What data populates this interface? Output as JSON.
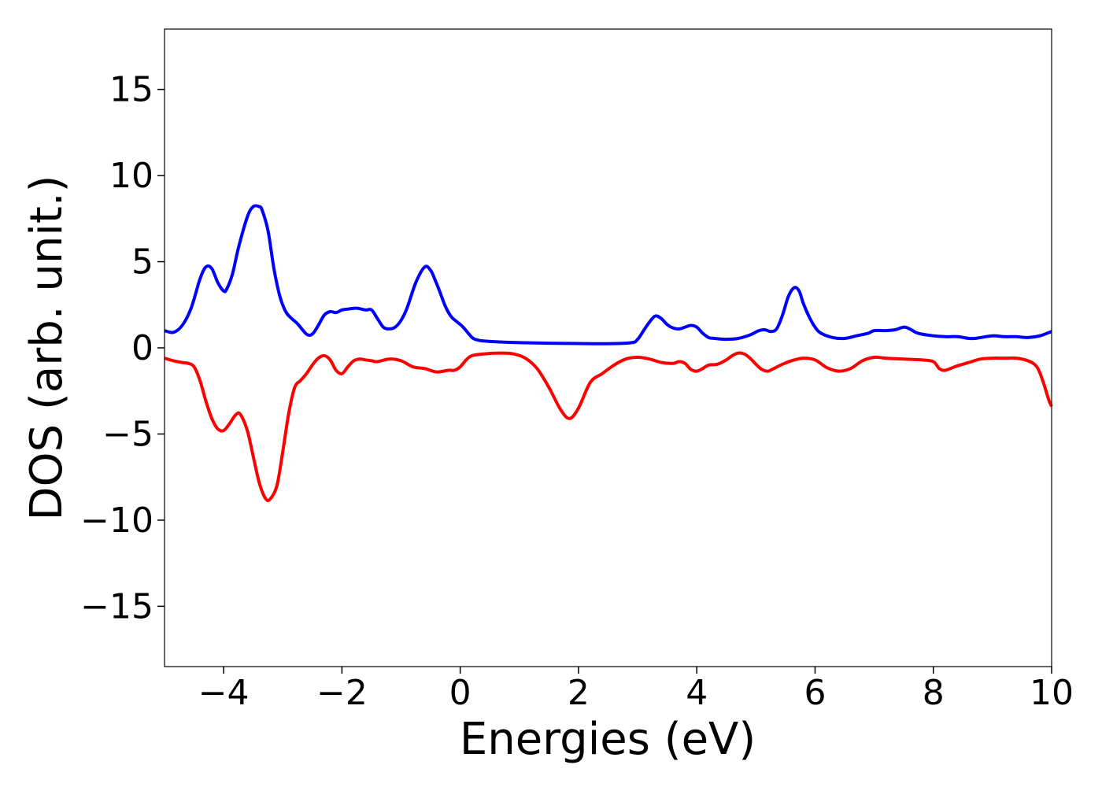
{
  "chart_data": {
    "type": "line",
    "title": "",
    "xlabel": "Energies (eV)",
    "ylabel": "DOS (arb. unit.)",
    "xlim": [
      -5,
      10
    ],
    "ylim": [
      -18.5,
      18.5
    ],
    "xticks": [
      -4,
      -2,
      0,
      2,
      4,
      6,
      8,
      10
    ],
    "xtick_labels": [
      "−4",
      "−2",
      "0",
      "2",
      "4",
      "6",
      "8",
      "10"
    ],
    "yticks": [
      -15,
      -10,
      -5,
      0,
      5,
      10,
      15
    ],
    "ytick_labels": [
      "−15",
      "−10",
      "−5",
      "0",
      "5",
      "10",
      "15"
    ],
    "grid": false,
    "legend": "none",
    "series": [
      {
        "color": "#0000ff",
        "x": [
          -5.0,
          -4.85,
          -4.7,
          -4.55,
          -4.4,
          -4.3,
          -4.2,
          -4.1,
          -4.0,
          -3.95,
          -3.85,
          -3.75,
          -3.6,
          -3.5,
          -3.4,
          -3.35,
          -3.25,
          -3.15,
          -3.05,
          -2.95,
          -2.85,
          -2.75,
          -2.6,
          -2.5,
          -2.4,
          -2.3,
          -2.2,
          -2.1,
          -2.0,
          -1.9,
          -1.75,
          -1.6,
          -1.5,
          -1.4,
          -1.3,
          -1.2,
          -1.1,
          -1.0,
          -0.9,
          -0.75,
          -0.6,
          -0.5,
          -0.42,
          -0.35,
          -0.25,
          -0.15,
          -0.05,
          0.05,
          0.2,
          0.3,
          0.4,
          0.6,
          1.0,
          1.5,
          2.0,
          2.5,
          2.9,
          3.0,
          3.1,
          3.2,
          3.3,
          3.4,
          3.5,
          3.6,
          3.7,
          3.8,
          3.9,
          4.0,
          4.1,
          4.2,
          4.3,
          4.5,
          4.7,
          4.9,
          5.05,
          5.15,
          5.25,
          5.35,
          5.45,
          5.55,
          5.65,
          5.73,
          5.8,
          5.9,
          6.0,
          6.1,
          6.3,
          6.5,
          6.7,
          6.9,
          7.0,
          7.2,
          7.35,
          7.5,
          7.6,
          7.7,
          7.8,
          8.0,
          8.2,
          8.4,
          8.6,
          8.7,
          8.8,
          9.0,
          9.2,
          9.4,
          9.6,
          9.8,
          10.0
        ],
        "y": [
          1.0,
          0.9,
          1.3,
          2.3,
          4.0,
          4.7,
          4.6,
          3.8,
          3.3,
          3.4,
          4.3,
          5.8,
          7.6,
          8.2,
          8.2,
          8.0,
          6.8,
          4.6,
          3.0,
          2.1,
          1.7,
          1.4,
          0.8,
          0.8,
          1.3,
          1.9,
          2.1,
          2.05,
          2.2,
          2.25,
          2.3,
          2.2,
          2.2,
          1.7,
          1.2,
          1.1,
          1.2,
          1.6,
          2.3,
          3.8,
          4.7,
          4.5,
          3.9,
          3.3,
          2.4,
          1.8,
          1.5,
          1.2,
          0.6,
          0.45,
          0.4,
          0.35,
          0.3,
          0.27,
          0.25,
          0.24,
          0.3,
          0.5,
          1.0,
          1.5,
          1.85,
          1.7,
          1.35,
          1.15,
          1.1,
          1.2,
          1.3,
          1.2,
          0.85,
          0.6,
          0.55,
          0.5,
          0.55,
          0.75,
          1.0,
          1.05,
          0.95,
          1.1,
          1.9,
          3.0,
          3.5,
          3.3,
          2.6,
          1.8,
          1.2,
          0.85,
          0.6,
          0.55,
          0.7,
          0.85,
          1.0,
          1.0,
          1.05,
          1.2,
          1.1,
          0.9,
          0.8,
          0.7,
          0.65,
          0.65,
          0.55,
          0.55,
          0.6,
          0.7,
          0.65,
          0.65,
          0.6,
          0.7,
          0.95
        ]
      },
      {
        "color": "#ff0000",
        "x": [
          -5.0,
          -4.85,
          -4.7,
          -4.6,
          -4.5,
          -4.4,
          -4.3,
          -4.2,
          -4.1,
          -4.0,
          -3.9,
          -3.8,
          -3.72,
          -3.6,
          -3.5,
          -3.4,
          -3.3,
          -3.22,
          -3.1,
          -3.0,
          -2.9,
          -2.8,
          -2.7,
          -2.6,
          -2.5,
          -2.4,
          -2.3,
          -2.2,
          -2.1,
          -2.0,
          -1.9,
          -1.8,
          -1.7,
          -1.6,
          -1.5,
          -1.4,
          -1.2,
          -1.0,
          -0.8,
          -0.6,
          -0.4,
          -0.2,
          -0.1,
          0.0,
          0.1,
          0.2,
          0.4,
          0.7,
          0.9,
          1.1,
          1.3,
          1.5,
          1.7,
          1.85,
          2.0,
          2.2,
          2.4,
          2.6,
          2.8,
          3.0,
          3.2,
          3.4,
          3.6,
          3.7,
          3.8,
          3.9,
          4.0,
          4.1,
          4.2,
          4.35,
          4.5,
          4.6,
          4.7,
          4.8,
          4.9,
          5.0,
          5.1,
          5.2,
          5.3,
          5.45,
          5.6,
          5.8,
          6.0,
          6.2,
          6.4,
          6.6,
          6.8,
          7.0,
          7.2,
          7.5,
          7.8,
          8.0,
          8.1,
          8.2,
          8.4,
          8.6,
          8.8,
          9.0,
          9.2,
          9.4,
          9.6,
          9.75,
          9.85,
          9.95,
          10.0
        ],
        "y": [
          -0.6,
          -0.75,
          -0.85,
          -0.9,
          -1.1,
          -1.9,
          -3.1,
          -4.1,
          -4.7,
          -4.8,
          -4.4,
          -3.9,
          -3.85,
          -4.8,
          -6.3,
          -7.8,
          -8.7,
          -8.8,
          -8.0,
          -6.0,
          -3.8,
          -2.3,
          -1.9,
          -1.5,
          -1.0,
          -0.6,
          -0.45,
          -0.7,
          -1.3,
          -1.5,
          -1.1,
          -0.75,
          -0.65,
          -0.7,
          -0.75,
          -0.8,
          -0.65,
          -0.75,
          -1.1,
          -1.2,
          -1.4,
          -1.3,
          -1.3,
          -1.1,
          -0.7,
          -0.45,
          -0.35,
          -0.3,
          -0.35,
          -0.6,
          -1.2,
          -2.3,
          -3.6,
          -4.1,
          -3.5,
          -2.0,
          -1.5,
          -1.0,
          -0.65,
          -0.55,
          -0.65,
          -0.85,
          -0.9,
          -0.8,
          -0.9,
          -1.25,
          -1.35,
          -1.2,
          -1.0,
          -0.95,
          -0.7,
          -0.45,
          -0.3,
          -0.35,
          -0.6,
          -0.95,
          -1.25,
          -1.35,
          -1.2,
          -0.95,
          -0.75,
          -0.6,
          -0.7,
          -1.15,
          -1.35,
          -1.2,
          -0.75,
          -0.55,
          -0.6,
          -0.65,
          -0.7,
          -0.8,
          -1.2,
          -1.3,
          -1.05,
          -0.85,
          -0.65,
          -0.6,
          -0.6,
          -0.6,
          -0.75,
          -1.1,
          -1.9,
          -3.0,
          -3.4
        ]
      }
    ]
  }
}
